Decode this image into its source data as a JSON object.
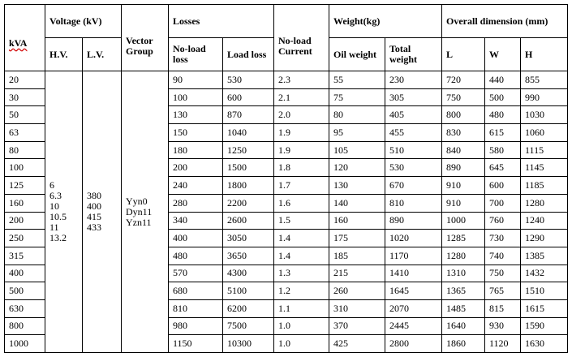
{
  "headers": {
    "kva": "kVA",
    "voltage": "Voltage (kV)",
    "hv": "H.V.",
    "lv": "L.V.",
    "vector_group": "Vector Group",
    "losses": "Losses",
    "no_load_loss": "No-load loss",
    "load_loss": "Load loss",
    "no_load_current": "No-load Current",
    "weight": "Weight(kg)",
    "oil_weight": "Oil weight",
    "total_weight": "Total weight",
    "overall_dimension": "Overall dimension (mm)",
    "l": "L",
    "w": "W",
    "h": "H"
  },
  "merged": {
    "hv": "6\n6.3\n10\n10.5\n11\n13.2",
    "lv": "380\n400\n415\n433",
    "vector_group": "Yyn0\nDyn11\nYzn11"
  },
  "rows": [
    {
      "kva": "20",
      "no_load_loss": "90",
      "load_loss": "530",
      "current": "2.3",
      "oil": "55",
      "total": "230",
      "l": "720",
      "w": "440",
      "h": "855"
    },
    {
      "kva": "30",
      "no_load_loss": "100",
      "load_loss": "600",
      "current": "2.1",
      "oil": "75",
      "total": "305",
      "l": "750",
      "w": "500",
      "h": "990"
    },
    {
      "kva": "50",
      "no_load_loss": "130",
      "load_loss": "870",
      "current": "2.0",
      "oil": "80",
      "total": "405",
      "l": "800",
      "w": "480",
      "h": "1030"
    },
    {
      "kva": "63",
      "no_load_loss": "150",
      "load_loss": "1040",
      "current": "1.9",
      "oil": "95",
      "total": "455",
      "l": "830",
      "w": "615",
      "h": "1060"
    },
    {
      "kva": "80",
      "no_load_loss": "180",
      "load_loss": "1250",
      "current": "1.9",
      "oil": "105",
      "total": "510",
      "l": "840",
      "w": "580",
      "h": "1115"
    },
    {
      "kva": "100",
      "no_load_loss": "200",
      "load_loss": "1500",
      "current": "1.8",
      "oil": "120",
      "total": "530",
      "l": "890",
      "w": "645",
      "h": "1145"
    },
    {
      "kva": "125",
      "no_load_loss": "240",
      "load_loss": "1800",
      "current": "1.7",
      "oil": "130",
      "total": "670",
      "l": "910",
      "w": "600",
      "h": "1185"
    },
    {
      "kva": "160",
      "no_load_loss": "280",
      "load_loss": "2200",
      "current": "1.6",
      "oil": "140",
      "total": "810",
      "l": "910",
      "w": "700",
      "h": "1280"
    },
    {
      "kva": "200",
      "no_load_loss": "340",
      "load_loss": "2600",
      "current": "1.5",
      "oil": "160",
      "total": "890",
      "l": "1000",
      "w": "760",
      "h": "1240"
    },
    {
      "kva": "250",
      "no_load_loss": "400",
      "load_loss": "3050",
      "current": "1.4",
      "oil": "175",
      "total": "1020",
      "l": "1285",
      "w": "730",
      "h": "1290"
    },
    {
      "kva": "315",
      "no_load_loss": "480",
      "load_loss": "3650",
      "current": "1.4",
      "oil": "185",
      "total": "1170",
      "l": "1280",
      "w": "740",
      "h": "1385"
    },
    {
      "kva": "400",
      "no_load_loss": "570",
      "load_loss": "4300",
      "current": "1.3",
      "oil": "215",
      "total": "1410",
      "l": "1310",
      "w": "750",
      "h": "1432"
    },
    {
      "kva": "500",
      "no_load_loss": "680",
      "load_loss": "5100",
      "current": "1.2",
      "oil": "260",
      "total": "1645",
      "l": "1365",
      "w": "765",
      "h": "1510"
    },
    {
      "kva": "630",
      "no_load_loss": "810",
      "load_loss": "6200",
      "current": "1.1",
      "oil": "310",
      "total": "2070",
      "l": "1485",
      "w": "815",
      "h": "1615"
    },
    {
      "kva": "800",
      "no_load_loss": "980",
      "load_loss": "7500",
      "current": "1.0",
      "oil": "370",
      "total": "2445",
      "l": "1640",
      "w": "930",
      "h": "1590"
    },
    {
      "kva": "1000",
      "no_load_loss": "1150",
      "load_loss": "10300",
      "current": "1.0",
      "oil": "425",
      "total": "2800",
      "l": "1860",
      "w": "1120",
      "h": "1630"
    }
  ]
}
